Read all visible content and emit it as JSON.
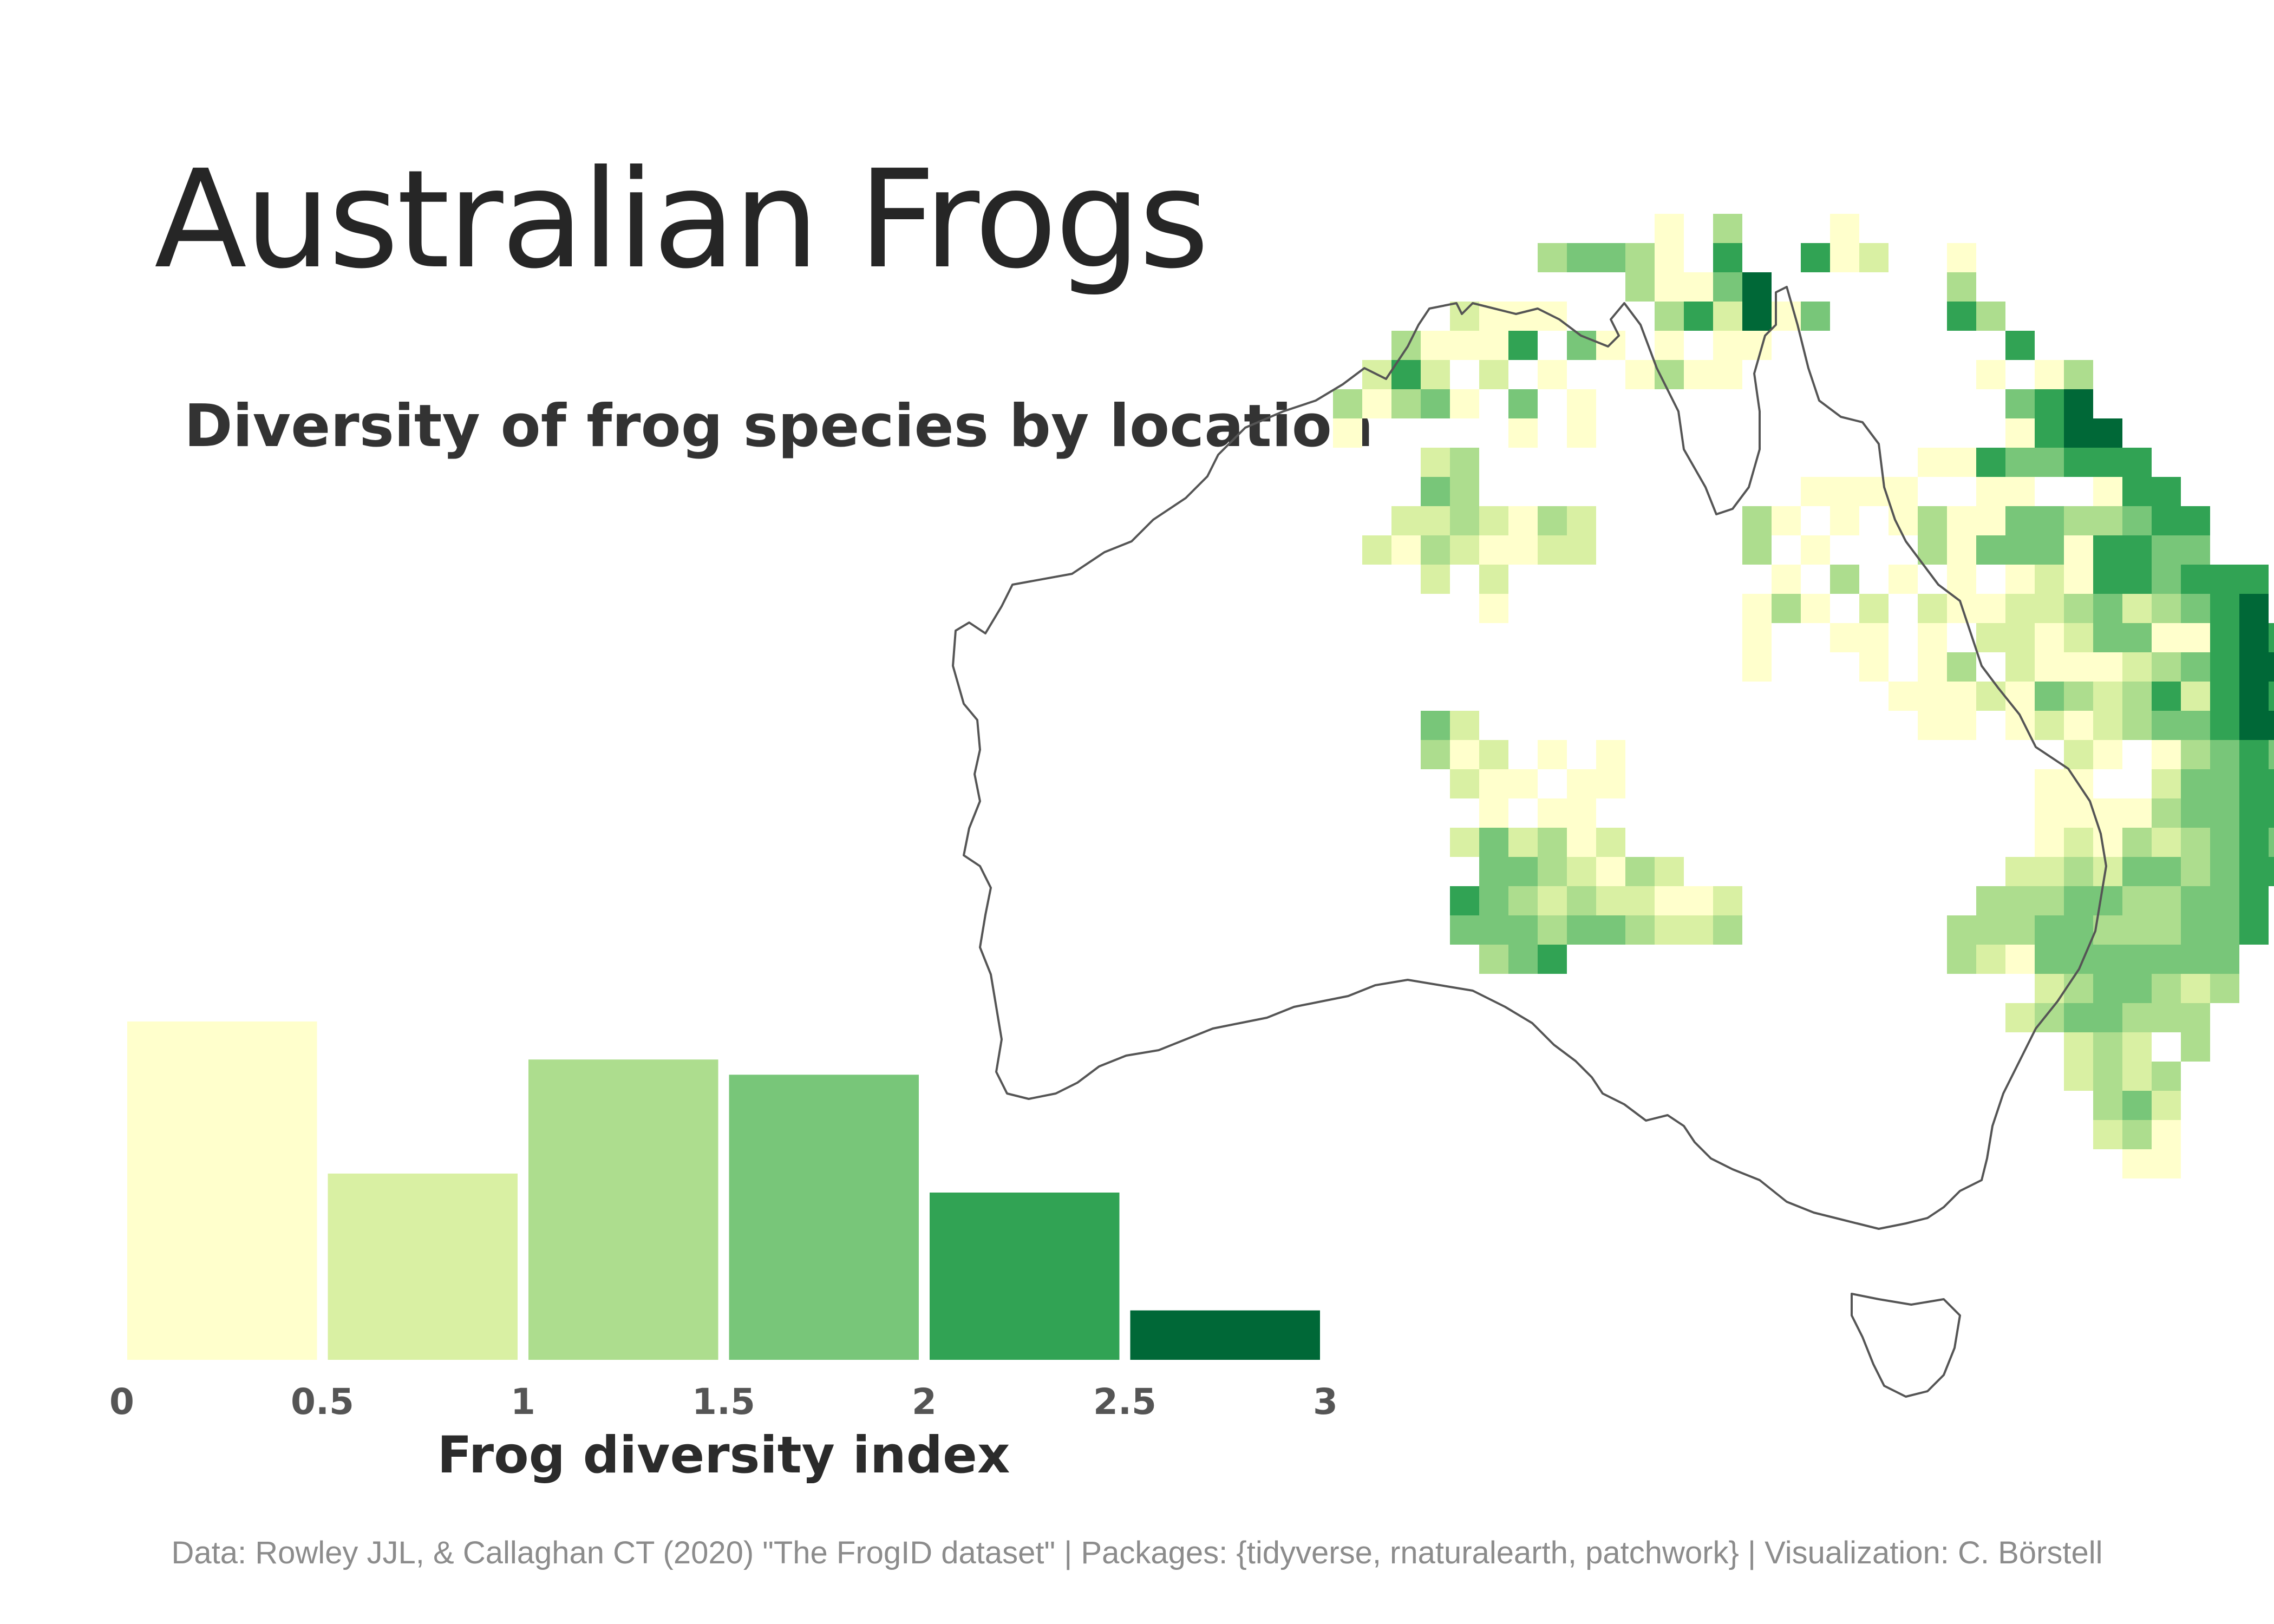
{
  "title": "Australian Frogs",
  "subtitle": "Diversity of frog species by location",
  "caption": "Data: Rowley JJL, & Callaghan CT (2020) \"The FrogID dataset\" | Packages: {tidyverse, rnaturalearth, patchwork} | Visualization: C. Börstell",
  "chart_data": [
    {
      "type": "bar",
      "xlabel": "Frog diversity index",
      "xlim": [
        0,
        3
      ],
      "x_ticks": [
        "0",
        "0.5",
        "1",
        "1.5",
        "2",
        "2.5",
        "3"
      ],
      "bins": [
        [
          0,
          0.5
        ],
        [
          0.5,
          1
        ],
        [
          1,
          1.5
        ],
        [
          1.5,
          2
        ],
        [
          2,
          2.5
        ],
        [
          2.5,
          3
        ]
      ],
      "values": [
        89,
        49,
        79,
        75,
        44,
        13
      ],
      "colors": [
        "#ffffcc",
        "#d9f0a3",
        "#addd8e",
        "#78c679",
        "#31a354",
        "#006837"
      ],
      "y_axis_shown": false
    },
    {
      "type": "heatmap",
      "description_region": "Australia",
      "value_name": "Frog diversity index",
      "levels": [
        "#ffffcc",
        "#d9f0a3",
        "#addd8e",
        "#78c679",
        "#31a354",
        "#006837"
      ]
    }
  ]
}
